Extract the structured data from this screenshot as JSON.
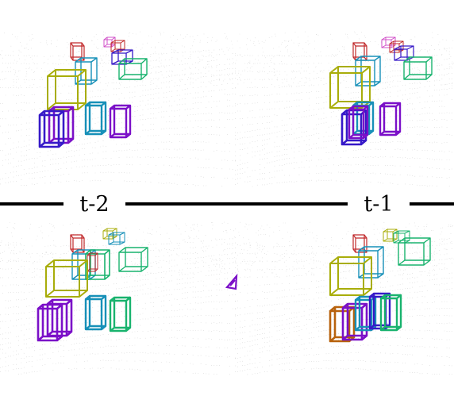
{
  "labels": {
    "top_left": "t-2",
    "top_right": "t-1"
  },
  "colors": {
    "yellow_green": "#a8ad0a",
    "teal": "#1790b8",
    "blue": "#3619c8",
    "purple": "#7b10c8",
    "green": "#19b36e",
    "red": "#c0282a",
    "pink": "#d050c8",
    "orange": "#b8620c",
    "points": "#9a9a9a"
  },
  "panels": [
    {
      "name": "panel-t-2",
      "boxes": [
        {
          "kind": "small",
          "color": "red"
        },
        {
          "kind": "small",
          "color": "pink"
        },
        {
          "kind": "small",
          "color": "red"
        },
        {
          "kind": "medium",
          "color": "teal"
        },
        {
          "kind": "medium",
          "color": "blue"
        },
        {
          "kind": "large",
          "color": "green"
        },
        {
          "kind": "large",
          "color": "yellow_green"
        },
        {
          "kind": "car",
          "color": "teal"
        },
        {
          "kind": "car",
          "color": "purple"
        },
        {
          "kind": "car",
          "color": "purple"
        },
        {
          "kind": "car",
          "color": "blue"
        }
      ]
    },
    {
      "name": "panel-t-1",
      "boxes": [
        {
          "kind": "small",
          "color": "red"
        },
        {
          "kind": "small",
          "color": "pink"
        },
        {
          "kind": "small",
          "color": "red"
        },
        {
          "kind": "medium",
          "color": "blue"
        },
        {
          "kind": "medium",
          "color": "teal"
        },
        {
          "kind": "large",
          "color": "green"
        },
        {
          "kind": "large",
          "color": "yellow_green"
        },
        {
          "kind": "car",
          "color": "teal"
        },
        {
          "kind": "car",
          "color": "purple"
        },
        {
          "kind": "car",
          "color": "blue"
        },
        {
          "kind": "car",
          "color": "purple"
        }
      ]
    },
    {
      "name": "panel-bottom-left",
      "boxes": [
        {
          "kind": "small",
          "color": "red"
        },
        {
          "kind": "small",
          "color": "yellow_green"
        },
        {
          "kind": "small",
          "color": "teal"
        },
        {
          "kind": "medium",
          "color": "teal"
        },
        {
          "kind": "medium",
          "color": "green"
        },
        {
          "kind": "medium",
          "color": "red"
        },
        {
          "kind": "large",
          "color": "green"
        },
        {
          "kind": "large",
          "color": "yellow_green"
        },
        {
          "kind": "car",
          "color": "teal"
        },
        {
          "kind": "car",
          "color": "green"
        },
        {
          "kind": "car",
          "color": "purple"
        },
        {
          "kind": "car",
          "color": "purple"
        }
      ]
    },
    {
      "name": "panel-bottom-right",
      "boxes": [
        {
          "kind": "small",
          "color": "red"
        },
        {
          "kind": "small",
          "color": "yellow_green"
        },
        {
          "kind": "small",
          "color": "green"
        },
        {
          "kind": "medium",
          "color": "teal"
        },
        {
          "kind": "large",
          "color": "green"
        },
        {
          "kind": "large",
          "color": "yellow_green"
        },
        {
          "kind": "car",
          "color": "orange"
        },
        {
          "kind": "car",
          "color": "purple"
        },
        {
          "kind": "car",
          "color": "teal"
        },
        {
          "kind": "car",
          "color": "blue"
        },
        {
          "kind": "car",
          "color": "green"
        }
      ]
    }
  ]
}
